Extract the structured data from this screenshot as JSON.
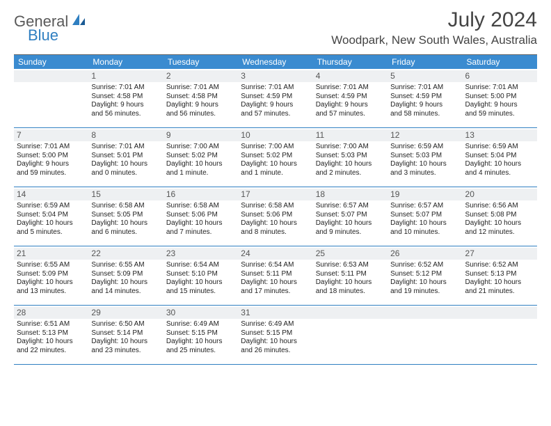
{
  "brand_general": "General",
  "brand_blue": "Blue",
  "month_title": "July 2024",
  "location": "Woodpark, New South Wales, Australia",
  "accent_color": "#3a8bd0",
  "rule_color": "#2f7fc1",
  "daynum_bg": "#eef0f2",
  "day_headers": [
    "Sunday",
    "Monday",
    "Tuesday",
    "Wednesday",
    "Thursday",
    "Friday",
    "Saturday"
  ],
  "weeks": [
    [
      null,
      {
        "n": "1",
        "sr": "Sunrise: 7:01 AM",
        "ss": "Sunset: 4:58 PM",
        "d1": "Daylight: 9 hours",
        "d2": "and 56 minutes."
      },
      {
        "n": "2",
        "sr": "Sunrise: 7:01 AM",
        "ss": "Sunset: 4:58 PM",
        "d1": "Daylight: 9 hours",
        "d2": "and 56 minutes."
      },
      {
        "n": "3",
        "sr": "Sunrise: 7:01 AM",
        "ss": "Sunset: 4:59 PM",
        "d1": "Daylight: 9 hours",
        "d2": "and 57 minutes."
      },
      {
        "n": "4",
        "sr": "Sunrise: 7:01 AM",
        "ss": "Sunset: 4:59 PM",
        "d1": "Daylight: 9 hours",
        "d2": "and 57 minutes."
      },
      {
        "n": "5",
        "sr": "Sunrise: 7:01 AM",
        "ss": "Sunset: 4:59 PM",
        "d1": "Daylight: 9 hours",
        "d2": "and 58 minutes."
      },
      {
        "n": "6",
        "sr": "Sunrise: 7:01 AM",
        "ss": "Sunset: 5:00 PM",
        "d1": "Daylight: 9 hours",
        "d2": "and 59 minutes."
      }
    ],
    [
      {
        "n": "7",
        "sr": "Sunrise: 7:01 AM",
        "ss": "Sunset: 5:00 PM",
        "d1": "Daylight: 9 hours",
        "d2": "and 59 minutes."
      },
      {
        "n": "8",
        "sr": "Sunrise: 7:01 AM",
        "ss": "Sunset: 5:01 PM",
        "d1": "Daylight: 10 hours",
        "d2": "and 0 minutes."
      },
      {
        "n": "9",
        "sr": "Sunrise: 7:00 AM",
        "ss": "Sunset: 5:02 PM",
        "d1": "Daylight: 10 hours",
        "d2": "and 1 minute."
      },
      {
        "n": "10",
        "sr": "Sunrise: 7:00 AM",
        "ss": "Sunset: 5:02 PM",
        "d1": "Daylight: 10 hours",
        "d2": "and 1 minute."
      },
      {
        "n": "11",
        "sr": "Sunrise: 7:00 AM",
        "ss": "Sunset: 5:03 PM",
        "d1": "Daylight: 10 hours",
        "d2": "and 2 minutes."
      },
      {
        "n": "12",
        "sr": "Sunrise: 6:59 AM",
        "ss": "Sunset: 5:03 PM",
        "d1": "Daylight: 10 hours",
        "d2": "and 3 minutes."
      },
      {
        "n": "13",
        "sr": "Sunrise: 6:59 AM",
        "ss": "Sunset: 5:04 PM",
        "d1": "Daylight: 10 hours",
        "d2": "and 4 minutes."
      }
    ],
    [
      {
        "n": "14",
        "sr": "Sunrise: 6:59 AM",
        "ss": "Sunset: 5:04 PM",
        "d1": "Daylight: 10 hours",
        "d2": "and 5 minutes."
      },
      {
        "n": "15",
        "sr": "Sunrise: 6:58 AM",
        "ss": "Sunset: 5:05 PM",
        "d1": "Daylight: 10 hours",
        "d2": "and 6 minutes."
      },
      {
        "n": "16",
        "sr": "Sunrise: 6:58 AM",
        "ss": "Sunset: 5:06 PM",
        "d1": "Daylight: 10 hours",
        "d2": "and 7 minutes."
      },
      {
        "n": "17",
        "sr": "Sunrise: 6:58 AM",
        "ss": "Sunset: 5:06 PM",
        "d1": "Daylight: 10 hours",
        "d2": "and 8 minutes."
      },
      {
        "n": "18",
        "sr": "Sunrise: 6:57 AM",
        "ss": "Sunset: 5:07 PM",
        "d1": "Daylight: 10 hours",
        "d2": "and 9 minutes."
      },
      {
        "n": "19",
        "sr": "Sunrise: 6:57 AM",
        "ss": "Sunset: 5:07 PM",
        "d1": "Daylight: 10 hours",
        "d2": "and 10 minutes."
      },
      {
        "n": "20",
        "sr": "Sunrise: 6:56 AM",
        "ss": "Sunset: 5:08 PM",
        "d1": "Daylight: 10 hours",
        "d2": "and 12 minutes."
      }
    ],
    [
      {
        "n": "21",
        "sr": "Sunrise: 6:55 AM",
        "ss": "Sunset: 5:09 PM",
        "d1": "Daylight: 10 hours",
        "d2": "and 13 minutes."
      },
      {
        "n": "22",
        "sr": "Sunrise: 6:55 AM",
        "ss": "Sunset: 5:09 PM",
        "d1": "Daylight: 10 hours",
        "d2": "and 14 minutes."
      },
      {
        "n": "23",
        "sr": "Sunrise: 6:54 AM",
        "ss": "Sunset: 5:10 PM",
        "d1": "Daylight: 10 hours",
        "d2": "and 15 minutes."
      },
      {
        "n": "24",
        "sr": "Sunrise: 6:54 AM",
        "ss": "Sunset: 5:11 PM",
        "d1": "Daylight: 10 hours",
        "d2": "and 17 minutes."
      },
      {
        "n": "25",
        "sr": "Sunrise: 6:53 AM",
        "ss": "Sunset: 5:11 PM",
        "d1": "Daylight: 10 hours",
        "d2": "and 18 minutes."
      },
      {
        "n": "26",
        "sr": "Sunrise: 6:52 AM",
        "ss": "Sunset: 5:12 PM",
        "d1": "Daylight: 10 hours",
        "d2": "and 19 minutes."
      },
      {
        "n": "27",
        "sr": "Sunrise: 6:52 AM",
        "ss": "Sunset: 5:13 PM",
        "d1": "Daylight: 10 hours",
        "d2": "and 21 minutes."
      }
    ],
    [
      {
        "n": "28",
        "sr": "Sunrise: 6:51 AM",
        "ss": "Sunset: 5:13 PM",
        "d1": "Daylight: 10 hours",
        "d2": "and 22 minutes."
      },
      {
        "n": "29",
        "sr": "Sunrise: 6:50 AM",
        "ss": "Sunset: 5:14 PM",
        "d1": "Daylight: 10 hours",
        "d2": "and 23 minutes."
      },
      {
        "n": "30",
        "sr": "Sunrise: 6:49 AM",
        "ss": "Sunset: 5:15 PM",
        "d1": "Daylight: 10 hours",
        "d2": "and 25 minutes."
      },
      {
        "n": "31",
        "sr": "Sunrise: 6:49 AM",
        "ss": "Sunset: 5:15 PM",
        "d1": "Daylight: 10 hours",
        "d2": "and 26 minutes."
      },
      null,
      null,
      null
    ]
  ]
}
